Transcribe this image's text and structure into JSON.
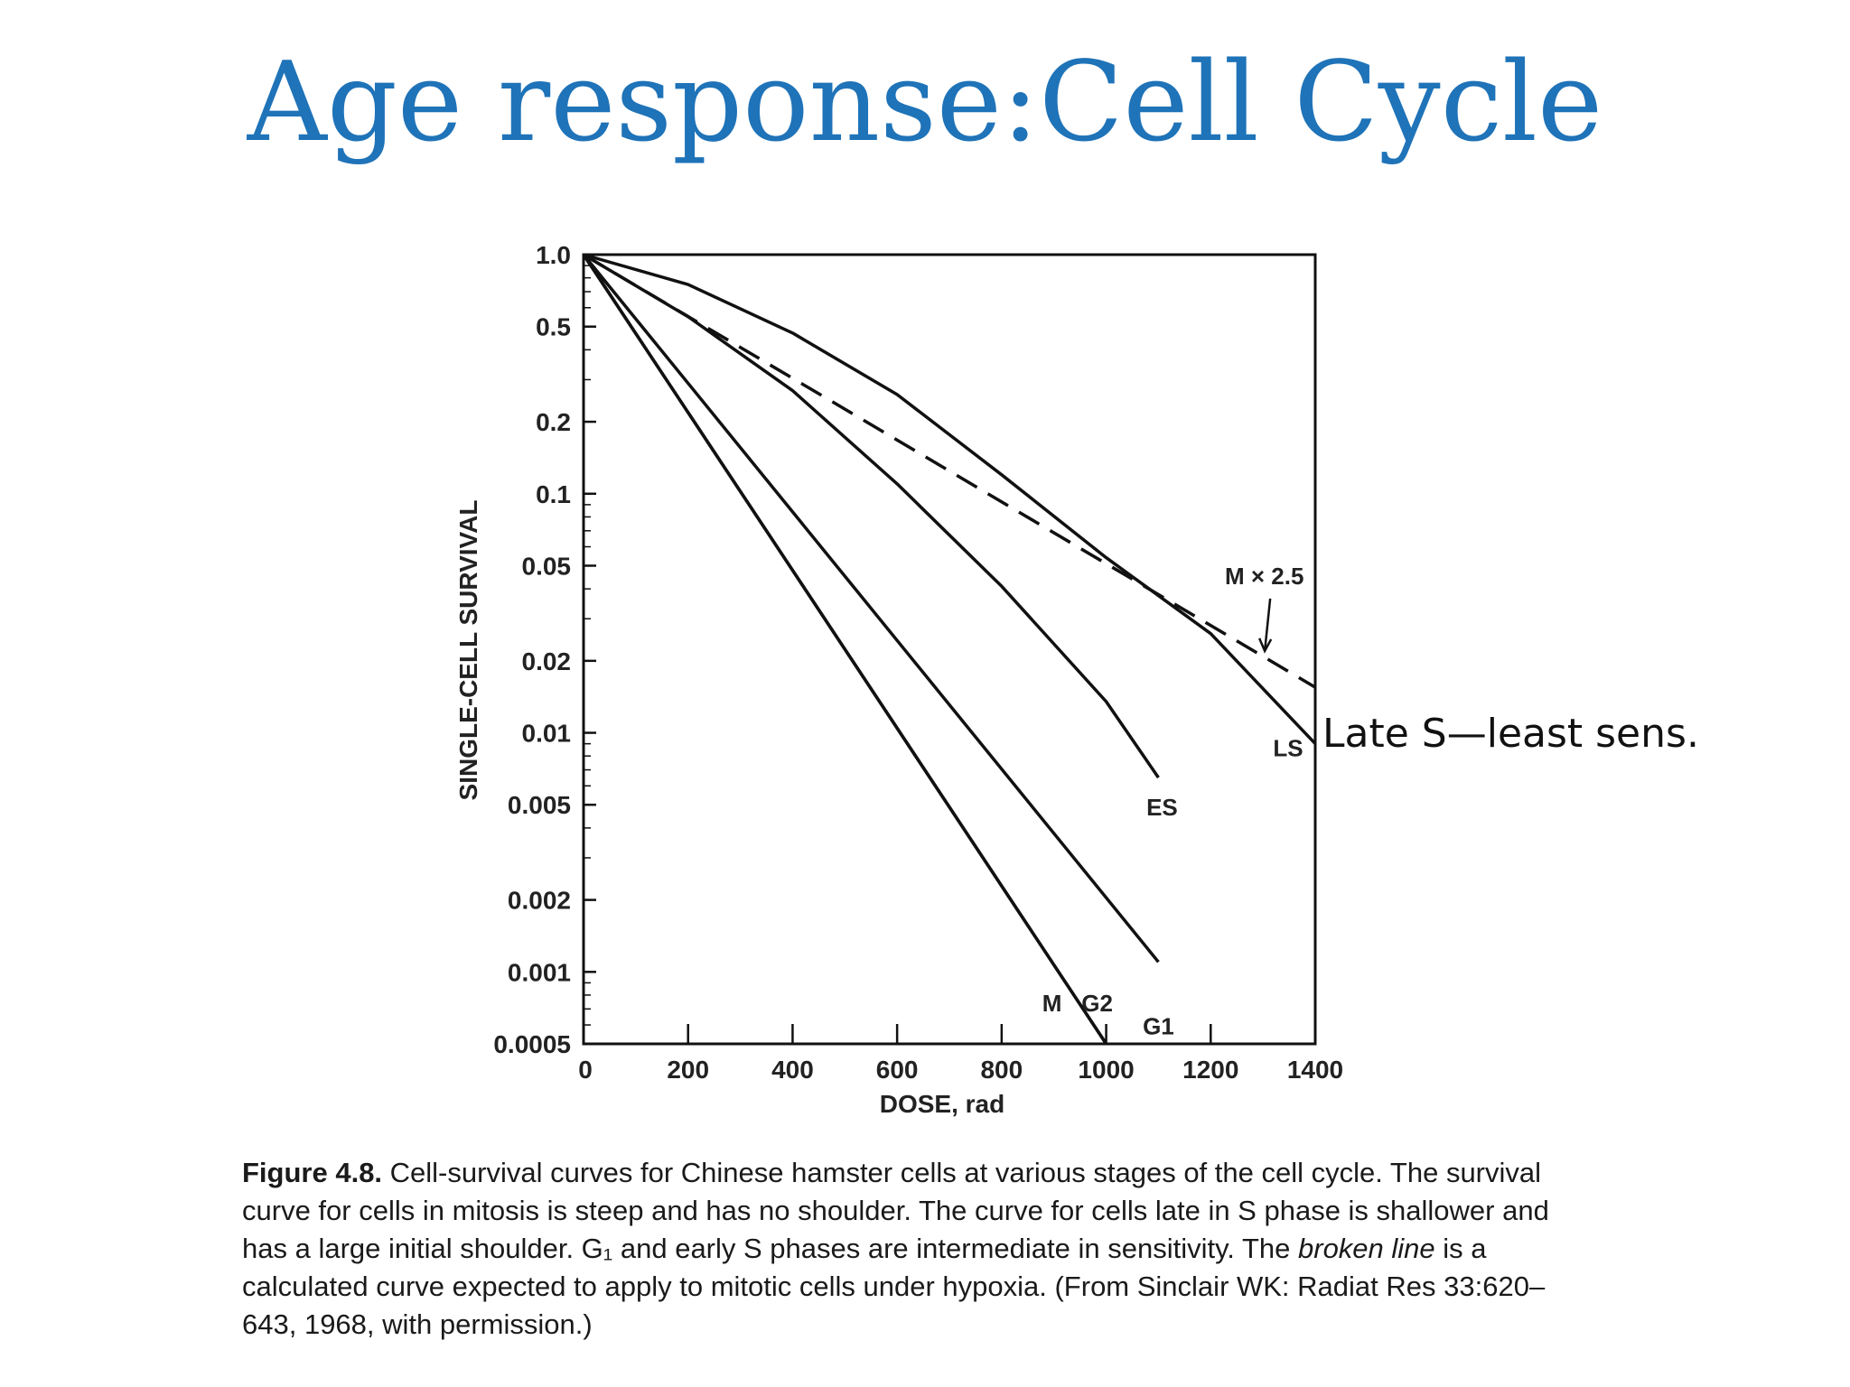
{
  "slide": {
    "title": "Age response:Cell Cycle",
    "side_note": "Late S—least sens."
  },
  "chart_data": {
    "type": "line",
    "xlabel": "DOSE, rad",
    "ylabel": "SINGLE-CELL SURVIVAL",
    "xlim": [
      0,
      1400
    ],
    "ylim": [
      0.0005,
      1.0
    ],
    "yscale": "log",
    "x_ticks": [
      "0",
      "200",
      "400",
      "600",
      "800",
      "1000",
      "1200",
      "1400"
    ],
    "y_ticks": [
      "1.0",
      "0.5",
      "0.2",
      "0.1",
      "0.05",
      "0.02",
      "0.01",
      "0.005",
      "0.002",
      "0.001",
      "0.0005"
    ],
    "series": [
      {
        "name": "M",
        "style": "solid",
        "x": [
          0,
          1000
        ],
        "y": [
          1.0,
          0.0005
        ]
      },
      {
        "name": "G2",
        "style": "solid",
        "x": [
          0,
          1000
        ],
        "y": [
          1.0,
          0.0005
        ]
      },
      {
        "name": "G1",
        "style": "solid",
        "x": [
          0,
          1100
        ],
        "y": [
          1.0,
          0.0011
        ]
      },
      {
        "name": "ES",
        "style": "solid",
        "x": [
          0,
          200,
          400,
          600,
          800,
          1000,
          1100
        ],
        "y": [
          1.0,
          0.55,
          0.27,
          0.11,
          0.041,
          0.0135,
          0.0065
        ]
      },
      {
        "name": "LS",
        "style": "solid",
        "x": [
          0,
          200,
          400,
          600,
          800,
          1000,
          1200,
          1400
        ],
        "y": [
          1.0,
          0.75,
          0.47,
          0.26,
          0.12,
          0.054,
          0.026,
          0.009
        ]
      },
      {
        "name": "M × 2.5",
        "style": "dashed",
        "x": [
          0,
          1400
        ],
        "y": [
          1.0,
          0.0155
        ]
      }
    ]
  },
  "caption": {
    "figure_label": "Figure 4.8.",
    "text_1": " Cell-survival curves for Chinese hamster cells at various stages of the cell cycle. The survival curve for cells in mitosis is steep and has no shoulder. The curve for cells late in S phase is shallower and has a large initial shoulder. G₁ and early S phases are intermediate in sensitivity. The ",
    "emphasis": "broken line",
    "text_2": " is a calculated curve expected to apply to mitotic cells under hypoxia. (From Sinclair WK: Radiat Res 33:620–643, 1968, with permission.)"
  }
}
